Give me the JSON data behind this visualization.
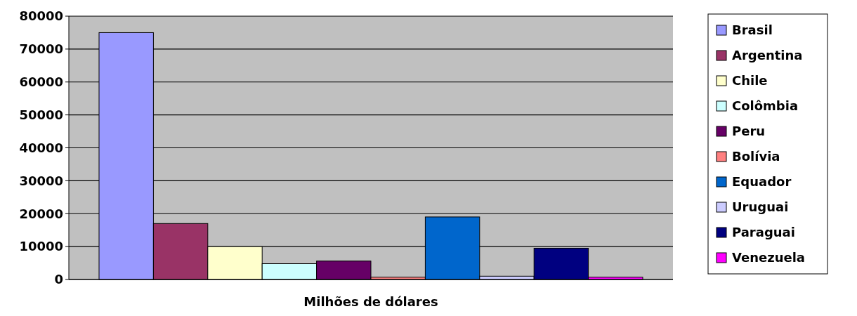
{
  "chart_data": {
    "type": "bar",
    "xlabel": "Milhões de dólares",
    "categories": [
      null
    ],
    "ylim": [
      0,
      80000
    ],
    "yticks": [
      0,
      10000,
      20000,
      30000,
      40000,
      50000,
      60000,
      70000,
      80000
    ],
    "grid": "y",
    "legend": "right",
    "series": [
      {
        "name": "Brasil",
        "color": "#9999ff",
        "values": [
          75000
        ]
      },
      {
        "name": "Argentina",
        "color": "#993366",
        "values": [
          17000
        ]
      },
      {
        "name": "Chile",
        "color": "#ffffcc",
        "values": [
          10000
        ]
      },
      {
        "name": "Colômbia",
        "color": "#ccffff",
        "values": [
          4800
        ]
      },
      {
        "name": "Peru",
        "color": "#660066",
        "values": [
          5600
        ]
      },
      {
        "name": "Bolívia",
        "color": "#ff8080",
        "values": [
          700
        ]
      },
      {
        "name": "Equador",
        "color": "#0066cc",
        "values": [
          19000
        ]
      },
      {
        "name": "Uruguai",
        "color": "#ccccff",
        "values": [
          1000
        ]
      },
      {
        "name": "Paraguai",
        "color": "#000080",
        "values": [
          9500
        ]
      },
      {
        "name": "Venezuela",
        "color": "#ff00ff",
        "values": [
          700
        ]
      }
    ]
  }
}
